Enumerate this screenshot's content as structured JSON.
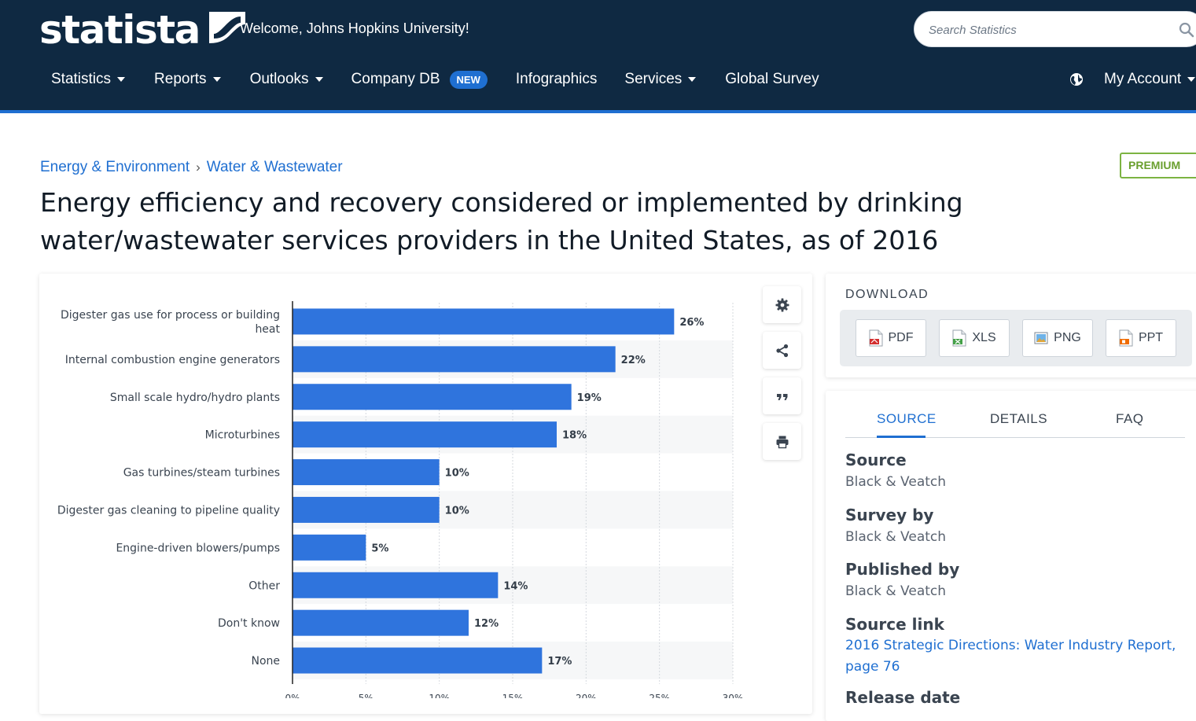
{
  "header": {
    "logo_text": "statista",
    "welcome": "Welcome, Johns Hopkins University!",
    "search_placeholder": "Search Statistics",
    "nav": [
      {
        "label": "Statistics",
        "dropdown": true
      },
      {
        "label": "Reports",
        "dropdown": true
      },
      {
        "label": "Outlooks",
        "dropdown": true
      },
      {
        "label": "Company DB",
        "badge": "NEW"
      },
      {
        "label": "Infographics"
      },
      {
        "label": "Services",
        "dropdown": true
      },
      {
        "label": "Global Survey"
      }
    ],
    "account_label": "My Account",
    "colors": {
      "background": "#0f2942",
      "accent": "#1f6fd1"
    }
  },
  "breadcrumb": [
    "Energy & Environment",
    "Water & Wastewater"
  ],
  "premium_label": "PREMIUM",
  "title": "Energy efficiency and recovery considered or implemented by drinking water/wastewater services providers in the United States, as of 2016",
  "chart_data": {
    "type": "bar",
    "orientation": "horizontal",
    "categories": [
      [
        "Digester gas use for process or building",
        "heat"
      ],
      [
        "Internal combustion engine generators"
      ],
      [
        "Small scale hydro/hydro plants"
      ],
      [
        "Microturbines"
      ],
      [
        "Gas turbines/steam turbines"
      ],
      [
        "Digester gas cleaning to pipeline quality"
      ],
      [
        "Engine-driven blowers/pumps"
      ],
      [
        "Other"
      ],
      [
        "Don't know"
      ],
      [
        "None"
      ]
    ],
    "values": [
      26,
      22,
      19,
      18,
      10,
      10,
      5,
      14,
      12,
      17
    ],
    "value_labels": [
      "26%",
      "22%",
      "19%",
      "18%",
      "10%",
      "10%",
      "5%",
      "14%",
      "12%",
      "17%"
    ],
    "xlim": [
      0,
      30
    ],
    "xticks": [
      0,
      5,
      10,
      15,
      20,
      25,
      30
    ],
    "xtick_labels": [
      "0%",
      "5%",
      "10%",
      "15%",
      "20%",
      "25%",
      "30%"
    ],
    "grid": true,
    "bar_color": "#2f74dd"
  },
  "tools": [
    "settings",
    "share",
    "cite",
    "print"
  ],
  "download": {
    "label": "DOWNLOAD",
    "buttons": [
      {
        "label": "PDF",
        "icon": "pdf-file-icon"
      },
      {
        "label": "XLS",
        "icon": "xls-file-icon"
      },
      {
        "label": "PNG",
        "icon": "png-file-icon"
      },
      {
        "label": "PPT",
        "icon": "ppt-file-icon"
      }
    ]
  },
  "source_panel": {
    "tabs": [
      "SOURCE",
      "DETAILS",
      "FAQ"
    ],
    "active_tab": "SOURCE",
    "source_label": "Source",
    "source_value": "Black & Veatch",
    "survey_label": "Survey by",
    "survey_value": "Black & Veatch",
    "published_label": "Published by",
    "published_value": "Black & Veatch",
    "link_label": "Source link",
    "link_value": "2016 Strategic Directions: Water Industry Report, page 76",
    "release_label": "Release date"
  }
}
